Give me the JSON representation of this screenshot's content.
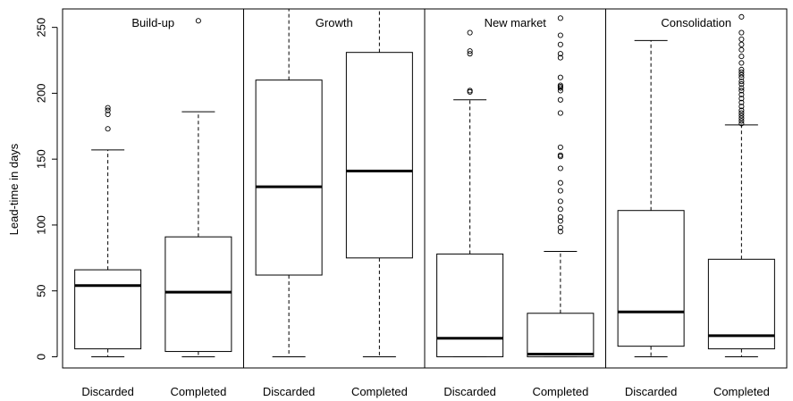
{
  "chart_data": {
    "type": "boxplot",
    "ylabel": "Lead-time in days",
    "xlabel": "",
    "ylim": [
      0,
      260
    ],
    "yticks": [
      0,
      50,
      100,
      150,
      200,
      250
    ],
    "grid": false,
    "panels": [
      {
        "name": "Build-up",
        "boxes": [
          {
            "category": "Discarded",
            "whisker_low": 0,
            "q1": 6,
            "median": 54,
            "q3": 66,
            "whisker_high": 157,
            "outliers": [
              173,
              184,
              187,
              189
            ]
          },
          {
            "category": "Completed",
            "whisker_low": 0,
            "q1": 4,
            "median": 49,
            "q3": 91,
            "whisker_high": 186,
            "outliers": [
              255
            ]
          }
        ]
      },
      {
        "name": "Growth",
        "boxes": [
          {
            "category": "Discarded",
            "whisker_low": 0,
            "q1": 62,
            "median": 129,
            "q3": 210,
            "whisker_high": 265,
            "outliers": []
          },
          {
            "category": "Completed",
            "whisker_low": 0,
            "q1": 75,
            "median": 141,
            "q3": 231,
            "whisker_high": 265,
            "outliers": []
          }
        ]
      },
      {
        "name": "New market",
        "boxes": [
          {
            "category": "Discarded",
            "whisker_low": 0,
            "q1": 0,
            "median": 14,
            "q3": 78,
            "whisker_high": 195,
            "outliers": [
              201,
              202,
              230,
              232,
              246
            ]
          },
          {
            "category": "Completed",
            "whisker_low": 0,
            "q1": 0,
            "median": 2,
            "q3": 33,
            "whisker_high": 80,
            "outliers": [
              95,
              98,
              103,
              106,
              112,
              118,
              126,
              132,
              143,
              152,
              153,
              159,
              185,
              195,
              202,
              204,
              205,
              206,
              212,
              227,
              230,
              237,
              244,
              257
            ]
          }
        ]
      },
      {
        "name": "Consolidation",
        "boxes": [
          {
            "category": "Discarded",
            "whisker_low": 0,
            "q1": 8,
            "median": 34,
            "q3": 111,
            "whisker_high": 240,
            "outliers": []
          },
          {
            "category": "Completed",
            "whisker_low": 0,
            "q1": 6,
            "median": 16,
            "q3": 74,
            "whisker_high": 176,
            "outliers": [
              177,
              179,
              181,
              183,
              185,
              187,
              190,
              193,
              196,
              199,
              202,
              204,
              207,
              209,
              212,
              214,
              216,
              218,
              223,
              228,
              233,
              237,
              241,
              246,
              258
            ]
          }
        ]
      }
    ]
  }
}
